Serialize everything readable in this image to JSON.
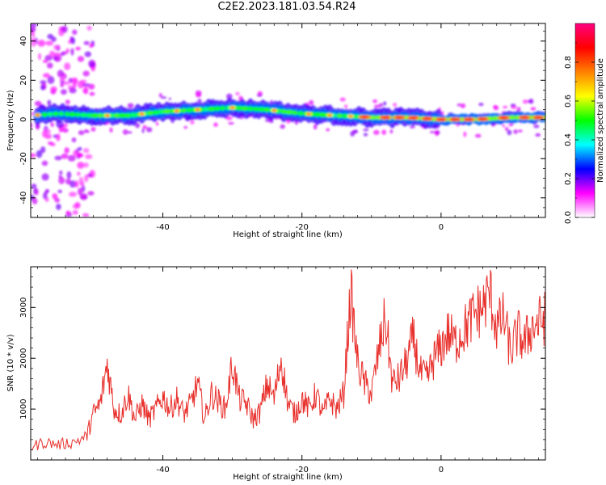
{
  "title": "C2E2.2023.181.03.54.R24",
  "chart_data": [
    {
      "type": "heatmap",
      "xlabel": "Height of straight line (km)",
      "ylabel": "Frequency (Hz)",
      "xlim": [
        -59,
        15
      ],
      "ylim": [
        -50,
        49
      ],
      "x_ticks": [
        "-40",
        "-20",
        "0"
      ],
      "y_ticks": [
        "40",
        "20",
        "0",
        "-20",
        "-40"
      ],
      "colorbar": {
        "label": "Normalized spectral amplitude",
        "range": [
          0,
          1
        ],
        "ticks": [
          "0.0",
          "0.2",
          "0.4",
          "0.6",
          "0.8"
        ],
        "colors": [
          "#ffffff",
          "#ff00ff",
          "#0000ff",
          "#00ffff",
          "#00ff00",
          "#ffff00",
          "#ff8000",
          "#ff0000",
          "#ff0080"
        ]
      },
      "ridge": {
        "x": [
          -59,
          -55,
          -50,
          -45,
          -40,
          -35,
          -30,
          -25,
          -20,
          -15,
          -10,
          -5,
          0,
          5,
          10,
          15
        ],
        "freq": [
          2,
          3,
          2,
          2,
          4,
          5,
          6,
          5,
          3,
          2,
          1,
          1,
          0,
          0,
          1,
          1
        ]
      }
    },
    {
      "type": "line",
      "xlabel": "Height of straight line (km)",
      "ylabel": "SNR (10 * v/v)",
      "xlim": [
        -59,
        15
      ],
      "ylim": [
        0,
        3800
      ],
      "x_ticks": [
        "-40",
        "-20",
        "0"
      ],
      "y_ticks": [
        "1000",
        "2000",
        "3000"
      ],
      "color": "#e8302c",
      "series": [
        {
          "x": [
            -59,
            -57,
            -55,
            -53,
            -51,
            -50,
            -49,
            -48,
            -47,
            -46,
            -45,
            -44,
            -43,
            -42,
            -41,
            -40,
            -39,
            -38,
            -37,
            -36,
            -35,
            -34,
            -33,
            -32,
            -31,
            -30,
            -29,
            -28,
            -27,
            -26,
            -25,
            -24,
            -23,
            -22,
            -21,
            -20,
            -19,
            -18,
            -17,
            -16,
            -15,
            -14,
            -13,
            -12,
            -11,
            -10,
            -9,
            -8,
            -7,
            -6,
            -5,
            -4,
            -3,
            -2,
            -1,
            0,
            1,
            2,
            3,
            4,
            5,
            6,
            7,
            8,
            9,
            10,
            11,
            12,
            13,
            14,
            15
          ],
          "values": [
            250,
            350,
            300,
            350,
            450,
            900,
            1100,
            1900,
            1000,
            900,
            1300,
            800,
            1100,
            800,
            1000,
            1250,
            1000,
            1200,
            900,
            1100,
            1500,
            800,
            1300,
            1150,
            1000,
            1900,
            1200,
            1100,
            800,
            950,
            1500,
            1200,
            2000,
            1100,
            900,
            1200,
            1000,
            1300,
            900,
            1200,
            1000,
            1300,
            3300,
            1900,
            1500,
            1300,
            2100,
            2800,
            1500,
            1600,
            1900,
            2400,
            1700,
            1600,
            2000,
            2200,
            2500,
            2300,
            2500,
            2700,
            2900,
            3000,
            3300,
            2600,
            2800,
            2100,
            2500,
            2300,
            2600,
            2700,
            2800
          ]
        }
      ]
    }
  ]
}
